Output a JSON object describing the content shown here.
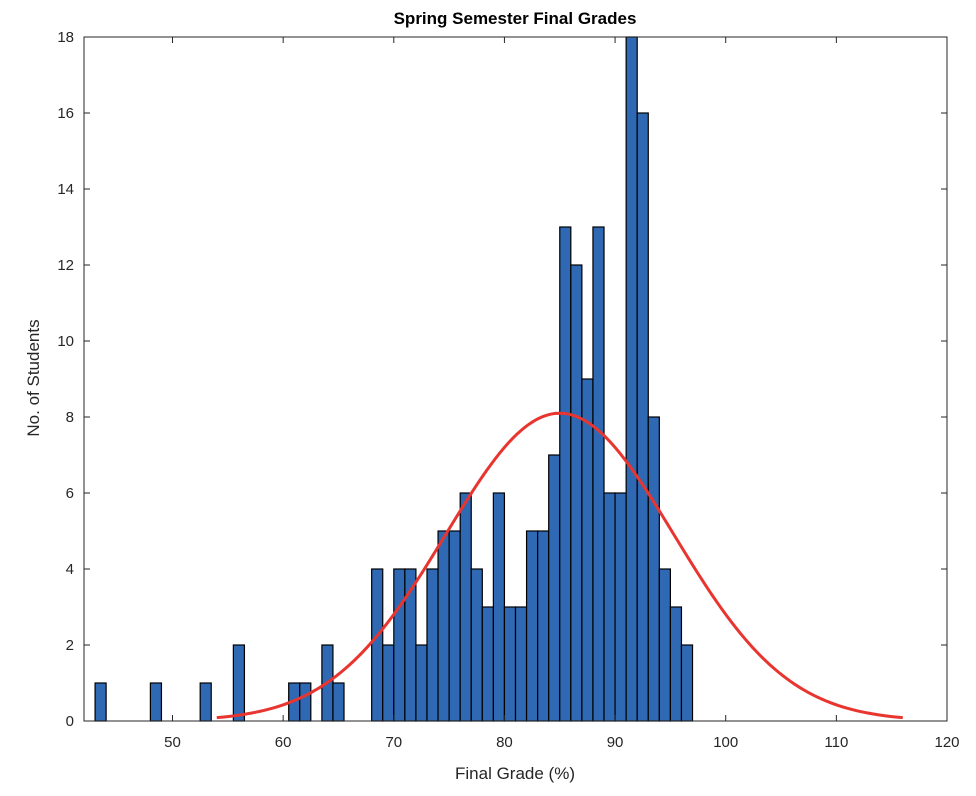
{
  "chart_data": {
    "type": "bar",
    "title": "Spring Semester Final Grades",
    "xlabel": "Final Grade (%)",
    "ylabel": "No. of Students",
    "xlim": [
      42,
      120
    ],
    "ylim": [
      0,
      18
    ],
    "xticks": [
      50,
      60,
      70,
      80,
      90,
      100,
      110,
      120
    ],
    "yticks": [
      0,
      2,
      4,
      6,
      8,
      10,
      12,
      14,
      16,
      18
    ],
    "grid": false,
    "bin_width": 1,
    "bar_color": "#2f68b3",
    "bar_edge_color": "#000000",
    "fit_color": "#e8352f",
    "bins": [
      {
        "start": 43,
        "count": 1
      },
      {
        "start": 48,
        "count": 1
      },
      {
        "start": 52.5,
        "count": 1
      },
      {
        "start": 55.5,
        "count": 2
      },
      {
        "start": 60.5,
        "count": 1
      },
      {
        "start": 61.5,
        "count": 1
      },
      {
        "start": 63.5,
        "count": 2
      },
      {
        "start": 64.5,
        "count": 1
      },
      {
        "start": 68,
        "count": 4
      },
      {
        "start": 69,
        "count": 2
      },
      {
        "start": 70,
        "count": 4
      },
      {
        "start": 71,
        "count": 4
      },
      {
        "start": 72,
        "count": 2
      },
      {
        "start": 73,
        "count": 4
      },
      {
        "start": 74,
        "count": 5
      },
      {
        "start": 75,
        "count": 5
      },
      {
        "start": 76,
        "count": 6
      },
      {
        "start": 77,
        "count": 4
      },
      {
        "start": 78,
        "count": 3
      },
      {
        "start": 79,
        "count": 6
      },
      {
        "start": 80,
        "count": 3
      },
      {
        "start": 81,
        "count": 3
      },
      {
        "start": 82,
        "count": 5
      },
      {
        "start": 83,
        "count": 5
      },
      {
        "start": 84,
        "count": 7
      },
      {
        "start": 85,
        "count": 13
      },
      {
        "start": 86,
        "count": 12
      },
      {
        "start": 87,
        "count": 9
      },
      {
        "start": 88,
        "count": 13
      },
      {
        "start": 89,
        "count": 6
      },
      {
        "start": 90,
        "count": 6
      },
      {
        "start": 91,
        "count": 18
      },
      {
        "start": 92,
        "count": 16
      },
      {
        "start": 93,
        "count": 8
      },
      {
        "start": 94,
        "count": 4
      },
      {
        "start": 95,
        "count": 3
      },
      {
        "start": 96,
        "count": 2
      }
    ],
    "fit_curve": {
      "type": "normal",
      "mean": 85,
      "peak": 8.1,
      "sigma": 10.3,
      "x_range": [
        54,
        116
      ]
    }
  }
}
